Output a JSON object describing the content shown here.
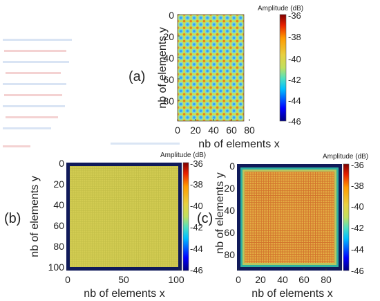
{
  "panel_labels": [
    "(a)",
    "(b)",
    "(c)"
  ],
  "colors": {
    "colormap": [
      "#00007f",
      "#0000ff",
      "#00bfff",
      "#4fe0c0",
      "#bfe05f",
      "#e8d040",
      "#ff9a00",
      "#e82000",
      "#7f0000"
    ]
  },
  "chart_data": [
    {
      "type": "heatmap",
      "panel": "(a)",
      "xlabel": "nb of elements x",
      "ylabel": "nb of elements y",
      "x_ticks": [
        0,
        20,
        40,
        60,
        80
      ],
      "y_ticks": [
        0,
        20,
        40,
        60,
        80
      ],
      "xlim": [
        0,
        100
      ],
      "ylim": [
        100,
        0
      ],
      "colorbar_title": "Amplitude (dB)",
      "colorbar_ticks": [
        -36,
        -38,
        -40,
        -42,
        -44,
        -46
      ],
      "clim": [
        -46,
        -36
      ],
      "periodic_cell_count": 10,
      "pattern": "periodic grid of low-amplitude (~-43 dB) circles on ~-40 dB background with ~-36 dB peaks between"
    },
    {
      "type": "heatmap",
      "panel": "(b)",
      "xlabel": "nb of elements x",
      "ylabel": "nb of elements y",
      "x_ticks": [
        0,
        50,
        100
      ],
      "y_ticks": [
        0,
        20,
        40,
        60,
        80,
        100
      ],
      "xlim": [
        0,
        100
      ],
      "ylim": [
        100,
        0
      ],
      "colorbar_title": "Amplitude (dB)",
      "colorbar_ticks": [
        -36,
        -38,
        -40,
        -42,
        -44,
        -46
      ],
      "clim": [
        -46,
        -36
      ],
      "pattern": "nearly uniform ~-39 dB field with fine grid, -46 dB border"
    },
    {
      "type": "heatmap",
      "panel": "(c)",
      "xlabel": "nb of elements x",
      "ylabel": "nb of elements y",
      "x_ticks": [
        0,
        20,
        40,
        60,
        80
      ],
      "y_ticks": [
        0,
        20,
        40,
        60,
        80
      ],
      "xlim": [
        0,
        95
      ],
      "ylim": [
        95,
        0
      ],
      "colorbar_title": "Amplitude (dB)",
      "colorbar_ticks": [
        -36,
        -38,
        -40,
        -42,
        -44,
        -46
      ],
      "clim": [
        -46,
        -36
      ],
      "pattern": "~-38 dB field with finer grid, ragged -42 dB edge, -46 dB border"
    }
  ]
}
